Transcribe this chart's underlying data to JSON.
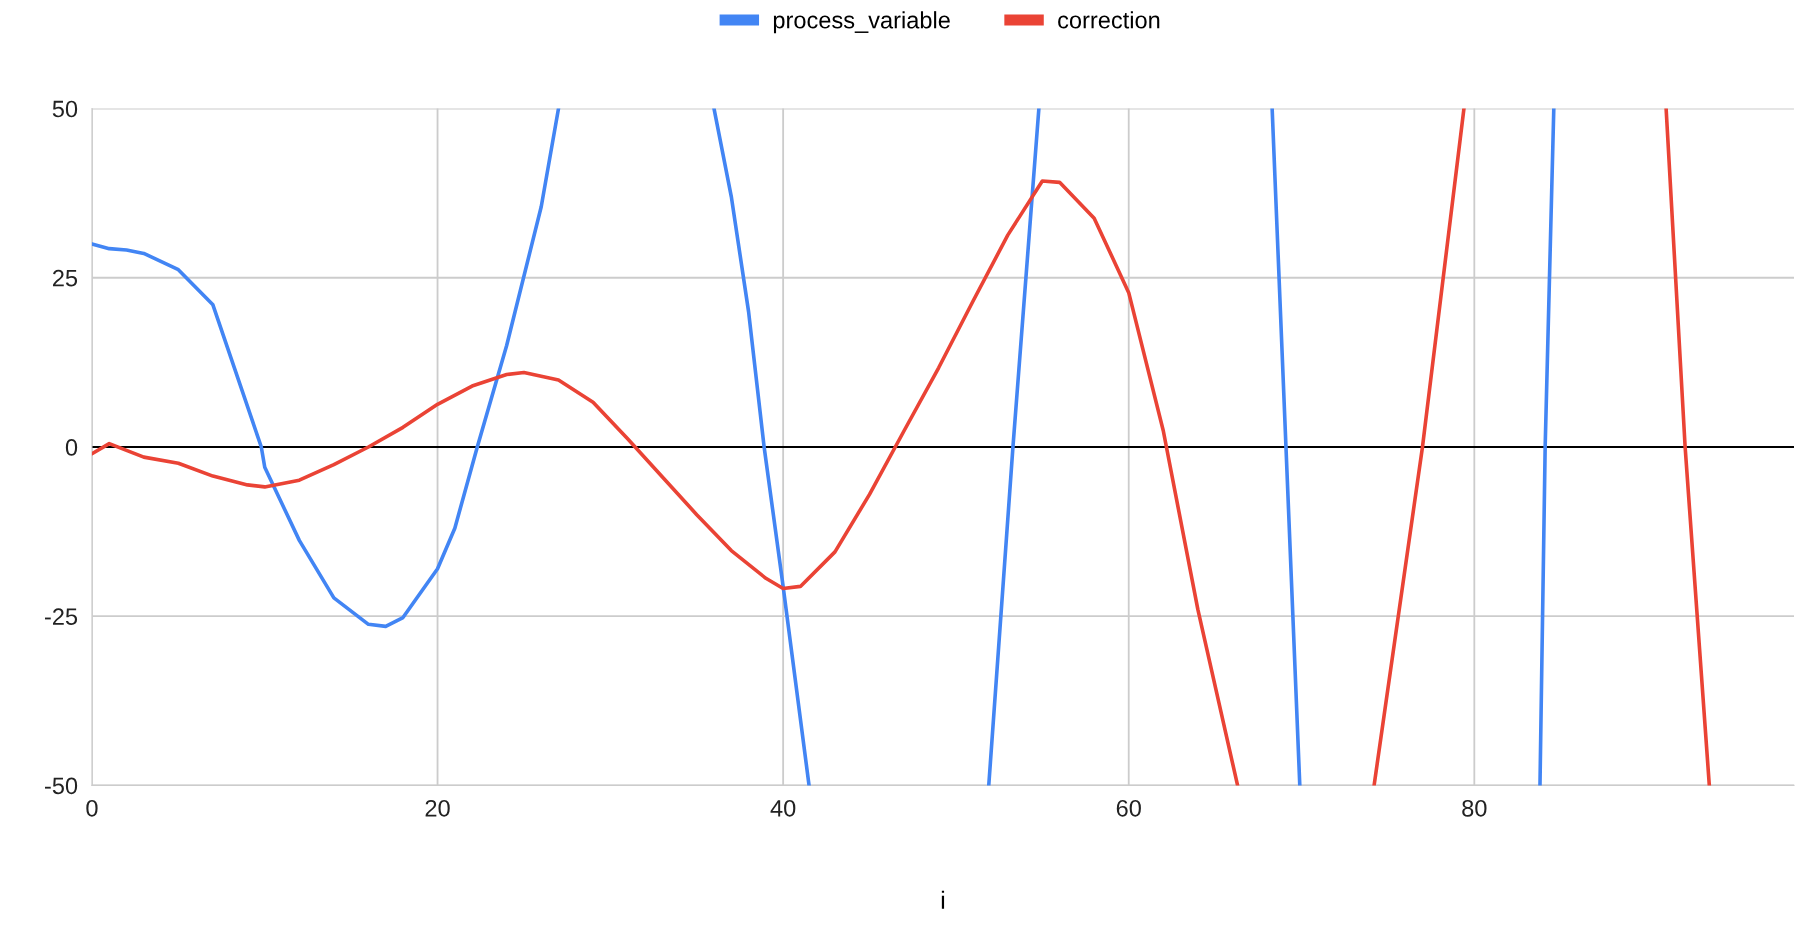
{
  "chart_data": {
    "type": "line",
    "xlabel": "i",
    "legend": "top",
    "grid": true,
    "marker": "none",
    "line_style": "solid",
    "xlim": [
      0,
      98.5
    ],
    "xticks": [
      0,
      20,
      40,
      60,
      80
    ],
    "ylim": [
      -50,
      50
    ],
    "yticks": [
      -50,
      -25,
      0,
      25,
      50
    ],
    "ref_lines": [
      {
        "axis": "y",
        "value": 0,
        "color": "#000000"
      }
    ],
    "series": [
      {
        "name": "process_variable",
        "color": "#4285f4",
        "x": [
          0,
          1,
          2,
          3,
          5,
          7,
          9.8,
          10,
          12,
          14,
          16,
          17,
          18,
          20,
          21,
          22.3,
          24,
          26,
          27,
          31,
          36,
          37,
          38,
          38.9,
          40,
          41.5,
          46,
          51.9,
          53.3,
          54.8,
          61,
          68.3,
          69.1,
          69.9,
          77,
          83.8,
          84.1,
          84.6
        ],
        "values": [
          30,
          29.3,
          29.1,
          28.6,
          26.2,
          21,
          0,
          -3,
          -13.8,
          -22.3,
          -26.2,
          -26.5,
          -25.2,
          -18,
          -12,
          0,
          15,
          35.5,
          50,
          null,
          50,
          37,
          20,
          0,
          -20.6,
          -50,
          null,
          -50,
          0,
          50,
          null,
          50,
          0,
          -50,
          null,
          -50,
          0,
          50
        ]
      },
      {
        "name": "correction",
        "color": "#ea4335",
        "x": [
          0,
          1,
          3,
          5,
          7,
          9,
          10,
          12,
          14,
          16,
          18,
          20,
          22,
          24,
          25,
          27,
          29,
          31,
          33,
          35,
          37,
          39,
          40,
          41,
          43,
          45,
          47,
          49,
          51,
          53,
          55,
          56,
          58,
          60,
          62,
          64,
          66.3,
          70,
          74.2,
          77,
          79.4,
          85,
          91.1,
          92.2,
          93.6
        ],
        "values": [
          -1,
          0.5,
          -1.5,
          -2.4,
          -4.3,
          -5.6,
          -5.9,
          -4.9,
          -2.6,
          0,
          2.9,
          6.3,
          9,
          10.7,
          11,
          9.9,
          6.6,
          1.2,
          -4.4,
          -10,
          -15.3,
          -19.4,
          -20.9,
          -20.6,
          -15.5,
          -7,
          2.4,
          11.7,
          21.6,
          31.3,
          39.3,
          39.1,
          33.8,
          22.8,
          2.4,
          -24,
          -50,
          null,
          -50,
          0,
          50,
          null,
          50,
          0,
          -50
        ]
      }
    ]
  }
}
